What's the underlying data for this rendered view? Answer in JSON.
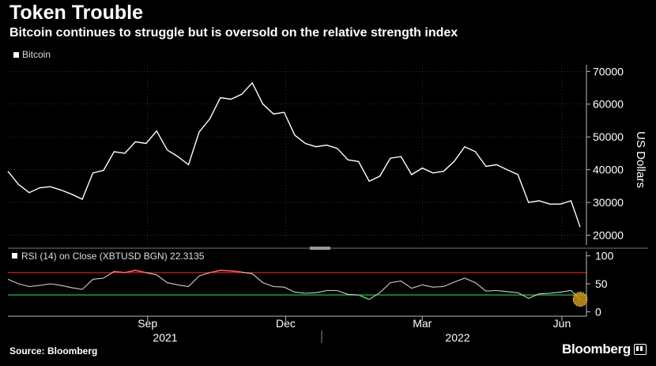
{
  "header": {
    "title": "Token Trouble",
    "subtitle": "Bitcoin continues to struggle but is oversold on the relative strength index"
  },
  "footer": {
    "source": "Source: Bloomberg",
    "brand": "Bloomberg"
  },
  "colors": {
    "background": "#000000",
    "price_line": "#ffffff",
    "rsi_line": "#cfcfcf",
    "overbought": "#d11f1f",
    "oversold": "#2bb34a",
    "rsi_highlight_over": "#ff5a5a",
    "rsi_highlight_under": "#3ccf5c",
    "marker": "#c99420"
  },
  "chart_data": [
    {
      "type": "line",
      "legend": "Bitcoin",
      "ylabel": "US Dollars",
      "ylim": [
        17000,
        72000
      ],
      "yticks": [
        20000,
        30000,
        40000,
        50000,
        60000,
        70000
      ],
      "ytick_labels": [
        "20000",
        "30000",
        "40000",
        "50000",
        "60000",
        "70000"
      ],
      "grid": true,
      "x": [
        "2021-06-01",
        "2021-06-08",
        "2021-06-15",
        "2021-06-22",
        "2021-06-29",
        "2021-07-06",
        "2021-07-13",
        "2021-07-20",
        "2021-07-27",
        "2021-08-03",
        "2021-08-10",
        "2021-08-17",
        "2021-08-24",
        "2021-08-31",
        "2021-09-07",
        "2021-09-14",
        "2021-09-21",
        "2021-09-28",
        "2021-10-05",
        "2021-10-12",
        "2021-10-19",
        "2021-10-26",
        "2021-11-02",
        "2021-11-09",
        "2021-11-16",
        "2021-11-23",
        "2021-11-30",
        "2021-12-07",
        "2021-12-14",
        "2021-12-21",
        "2021-12-28",
        "2022-01-04",
        "2022-01-11",
        "2022-01-18",
        "2022-01-25",
        "2022-02-01",
        "2022-02-08",
        "2022-02-15",
        "2022-02-22",
        "2022-03-01",
        "2022-03-08",
        "2022-03-15",
        "2022-03-22",
        "2022-03-29",
        "2022-04-05",
        "2022-04-12",
        "2022-04-19",
        "2022-04-26",
        "2022-05-03",
        "2022-05-10",
        "2022-05-17",
        "2022-05-24",
        "2022-05-31",
        "2022-06-07",
        "2022-06-13"
      ],
      "values": [
        39500,
        35500,
        33000,
        34500,
        34800,
        33800,
        32500,
        31000,
        39000,
        39800,
        45500,
        45000,
        48500,
        48000,
        51800,
        46000,
        44000,
        41500,
        51500,
        55500,
        62000,
        61500,
        63000,
        66500,
        60000,
        57000,
        57500,
        50500,
        48000,
        47000,
        47500,
        46500,
        43000,
        42500,
        36500,
        38000,
        43500,
        44000,
        38500,
        40500,
        39000,
        39500,
        42500,
        47000,
        45500,
        41000,
        41500,
        40000,
        38500,
        30000,
        30500,
        29500,
        29500,
        30500,
        22500
      ]
    },
    {
      "type": "line",
      "legend": "RSI (14)  on Close (XBTUSD BGN) 22.3135",
      "ylim": [
        -8,
        108
      ],
      "yticks": [
        0,
        50,
        100
      ],
      "ytick_labels": [
        "0",
        "50",
        "100"
      ],
      "overbought_level": 70,
      "oversold_level": 30,
      "x_tick_labels": [
        "Sep",
        "Dec",
        "Mar",
        "Jun"
      ],
      "x_year_labels": [
        "2021",
        "2022"
      ],
      "values": [
        58,
        50,
        45,
        47,
        50,
        47,
        43,
        40,
        58,
        60,
        72,
        70,
        74,
        70,
        66,
        52,
        48,
        45,
        64,
        70,
        74,
        73,
        71,
        68,
        52,
        45,
        44,
        35,
        33,
        34,
        38,
        38,
        31,
        30,
        22,
        34,
        52,
        55,
        42,
        48,
        44,
        45,
        53,
        60,
        52,
        37,
        38,
        36,
        34,
        24,
        32,
        33,
        35,
        38,
        22.3
      ]
    }
  ]
}
